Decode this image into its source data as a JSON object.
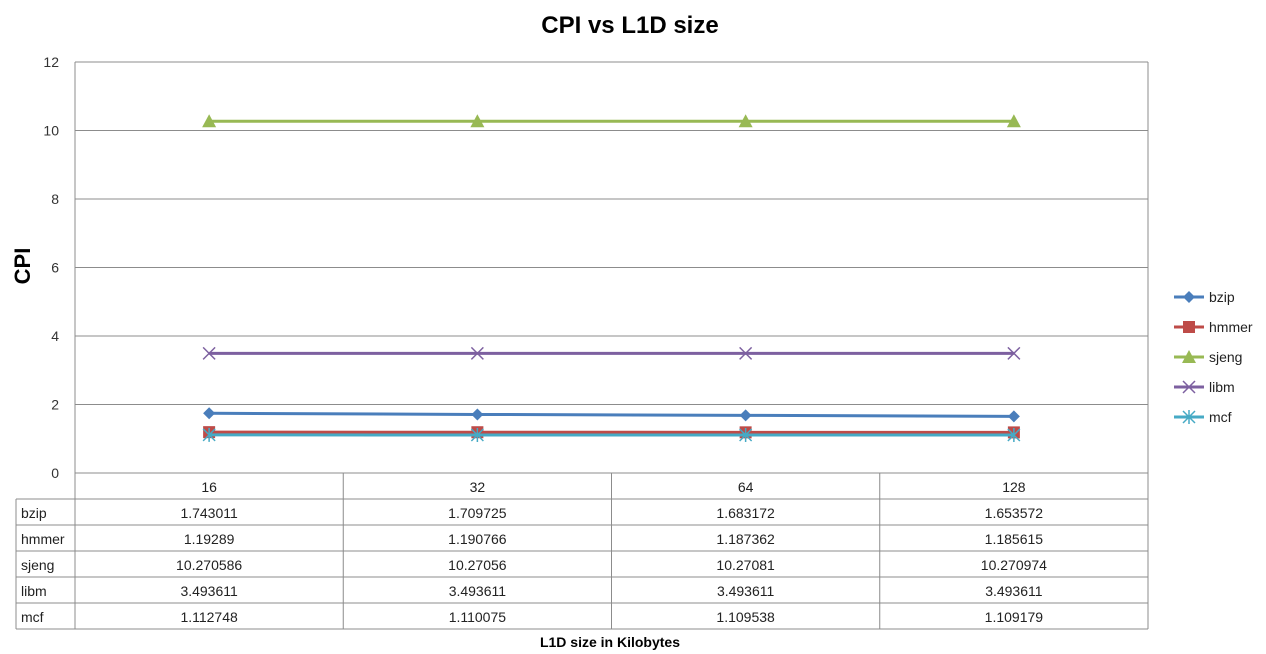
{
  "chart_data": {
    "type": "line",
    "title": "CPI vs L1D size",
    "xlabel": "L1D size in Kilobytes",
    "ylabel": "CPI",
    "ylim": [
      0,
      12
    ],
    "yticks": [
      0,
      2,
      4,
      6,
      8,
      10,
      12
    ],
    "grid": true,
    "legend_position": "right",
    "categories": [
      "16",
      "32",
      "64",
      "128"
    ],
    "series": [
      {
        "name": "bzip",
        "color": "#4a7ebb",
        "marker": "diamond",
        "values": [
          1.743011,
          1.709725,
          1.683172,
          1.653572
        ],
        "labels": [
          "1.743011",
          "1.709725",
          "1.683172",
          "1.653572"
        ]
      },
      {
        "name": "hmmer",
        "color": "#be4b48",
        "marker": "square",
        "values": [
          1.19289,
          1.190766,
          1.187362,
          1.185615
        ],
        "labels": [
          "1.19289",
          "1.190766",
          "1.187362",
          "1.185615"
        ]
      },
      {
        "name": "sjeng",
        "color": "#98b954",
        "marker": "triangle",
        "values": [
          10.270586,
          10.27056,
          10.27081,
          10.270974
        ],
        "labels": [
          "10.270586",
          "10.27056",
          "10.27081",
          "10.270974"
        ]
      },
      {
        "name": "libm",
        "color": "#7d60a0",
        "marker": "x",
        "values": [
          3.493611,
          3.493611,
          3.493611,
          3.493611
        ],
        "labels": [
          "3.493611",
          "3.493611",
          "3.493611",
          "3.493611"
        ]
      },
      {
        "name": "mcf",
        "color": "#46aac5",
        "marker": "star",
        "values": [
          1.112748,
          1.110075,
          1.109538,
          1.109179
        ],
        "labels": [
          "1.112748",
          "1.110075",
          "1.109538",
          "1.109179"
        ]
      }
    ]
  }
}
